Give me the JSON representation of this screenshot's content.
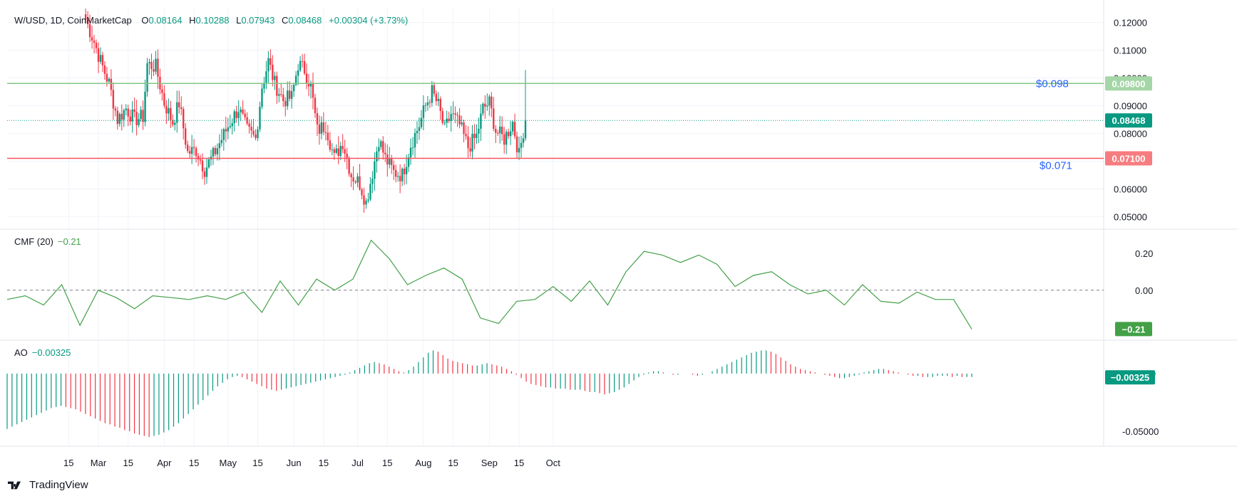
{
  "header": {
    "symbol": "W/USD, 1D, CoinMarketCap",
    "open_label": "O",
    "open": "0.08164",
    "high_label": "H",
    "high": "0.10288",
    "low_label": "L",
    "low": "0.07943",
    "close_label": "C",
    "close": "0.08468",
    "change": "+0.00304 (+3.73%)"
  },
  "indicators": {
    "cmf": {
      "label": "CMF (20)",
      "value": "−0.21"
    },
    "ao": {
      "label": "AO",
      "value": "−0.00325"
    }
  },
  "brand": {
    "name": "TradingView"
  },
  "colors": {
    "up": "#089981",
    "down": "#f23645",
    "cmf_line": "#43a047",
    "resistance": "#81c784",
    "support": "#f7525f",
    "annotation": "#2962ff"
  },
  "chart_data": {
    "type": "candlestick",
    "x_ticks": [
      "15",
      "Mar",
      "15",
      "Apr",
      "15",
      "May",
      "15",
      "Jun",
      "15",
      "Jul",
      "15",
      "Aug",
      "15",
      "Sep",
      "15",
      "Oct"
    ],
    "price_axis": {
      "ticks": [
        "0.12000",
        "0.11000",
        "0.10000",
        "0.09000",
        "0.08000",
        "0.07000",
        "0.06000",
        "0.05000"
      ],
      "range": [
        0.047,
        0.124
      ]
    },
    "resistance": {
      "value": 0.098,
      "annotation": "$0.098",
      "badge": "0.09800"
    },
    "support": {
      "value": 0.071,
      "annotation": "$0.071",
      "badge": "0.07100"
    },
    "last_price": {
      "value": 0.08468,
      "badge": "0.08468"
    },
    "close_points": [
      {
        "date": "Feb 23",
        "close": 0.121
      },
      {
        "date": "Feb 27",
        "close": 0.113
      },
      {
        "date": "Mar 2",
        "close": 0.106
      },
      {
        "date": "Mar 6",
        "close": 0.098
      },
      {
        "date": "Mar 10",
        "close": 0.085
      },
      {
        "date": "Mar 14",
        "close": 0.089
      },
      {
        "date": "Mar 18",
        "close": 0.085
      },
      {
        "date": "Mar 22",
        "close": 0.086
      },
      {
        "date": "Mar 24",
        "close": 0.105
      },
      {
        "date": "Mar 28",
        "close": 0.104
      },
      {
        "date": "Apr 1",
        "close": 0.091
      },
      {
        "date": "Apr 5",
        "close": 0.084
      },
      {
        "date": "Apr 8",
        "close": 0.091
      },
      {
        "date": "Apr 12",
        "close": 0.073
      },
      {
        "date": "Apr 16",
        "close": 0.074
      },
      {
        "date": "Apr 20",
        "close": 0.067
      },
      {
        "date": "Apr 24",
        "close": 0.072
      },
      {
        "date": "Apr 28",
        "close": 0.078
      },
      {
        "date": "May 2",
        "close": 0.084
      },
      {
        "date": "May 6",
        "close": 0.089
      },
      {
        "date": "May 10",
        "close": 0.081
      },
      {
        "date": "May 14",
        "close": 0.078
      },
      {
        "date": "May 17",
        "close": 0.097
      },
      {
        "date": "May 20",
        "close": 0.106
      },
      {
        "date": "May 23",
        "close": 0.098
      },
      {
        "date": "May 27",
        "close": 0.092
      },
      {
        "date": "May 31",
        "close": 0.093
      },
      {
        "date": "Jun 3",
        "close": 0.105
      },
      {
        "date": "Jun 6",
        "close": 0.103
      },
      {
        "date": "Jun 9",
        "close": 0.097
      },
      {
        "date": "Jun 12",
        "close": 0.081
      },
      {
        "date": "Jun 16",
        "close": 0.083
      },
      {
        "date": "Jun 20",
        "close": 0.071
      },
      {
        "date": "Jun 24",
        "close": 0.077
      },
      {
        "date": "Jun 28",
        "close": 0.065
      },
      {
        "date": "Jul 2",
        "close": 0.062
      },
      {
        "date": "Jul 5",
        "close": 0.055
      },
      {
        "date": "Jul 8",
        "close": 0.066
      },
      {
        "date": "Jul 11",
        "close": 0.078
      },
      {
        "date": "Jul 14",
        "close": 0.071
      },
      {
        "date": "Jul 18",
        "close": 0.066
      },
      {
        "date": "Jul 22",
        "close": 0.065
      },
      {
        "date": "Jul 26",
        "close": 0.076
      },
      {
        "date": "Jul 30",
        "close": 0.083
      },
      {
        "date": "Aug 2",
        "close": 0.09
      },
      {
        "date": "Aug 5",
        "close": 0.095
      },
      {
        "date": "Aug 8",
        "close": 0.09
      },
      {
        "date": "Aug 11",
        "close": 0.081
      },
      {
        "date": "Aug 14",
        "close": 0.087
      },
      {
        "date": "Aug 18",
        "close": 0.083
      },
      {
        "date": "Aug 22",
        "close": 0.075
      },
      {
        "date": "Aug 26",
        "close": 0.079
      },
      {
        "date": "Aug 29",
        "close": 0.089
      },
      {
        "date": "Sep 1",
        "close": 0.091
      },
      {
        "date": "Sep 4",
        "close": 0.081
      },
      {
        "date": "Sep 8",
        "close": 0.078
      },
      {
        "date": "Sep 12",
        "close": 0.084
      },
      {
        "date": "Sep 15",
        "close": 0.072
      },
      {
        "date": "Sep 17",
        "close": 0.081
      },
      {
        "date": "Sep 18",
        "close": 0.08468
      }
    ],
    "cmf": {
      "axis_ticks": [
        "0.20",
        "0.00"
      ],
      "range": [
        -0.27,
        0.33
      ],
      "zero_line": 0,
      "points": [
        {
          "date": "Feb 10",
          "v": -0.05
        },
        {
          "date": "Feb 18",
          "v": -0.03
        },
        {
          "date": "Feb 24",
          "v": -0.08
        },
        {
          "date": "Feb 27",
          "v": 0.03
        },
        {
          "date": "Mar 1",
          "v": -0.19
        },
        {
          "date": "Mar 6",
          "v": 0.0
        },
        {
          "date": "Mar 12",
          "v": -0.04
        },
        {
          "date": "Mar 18",
          "v": -0.1
        },
        {
          "date": "Mar 24",
          "v": -0.03
        },
        {
          "date": "Mar 31",
          "v": -0.04
        },
        {
          "date": "Apr 6",
          "v": -0.05
        },
        {
          "date": "Apr 12",
          "v": -0.03
        },
        {
          "date": "Apr 18",
          "v": -0.05
        },
        {
          "date": "Apr 24",
          "v": -0.01
        },
        {
          "date": "Apr 29",
          "v": -0.12
        },
        {
          "date": "May 4",
          "v": 0.05
        },
        {
          "date": "May 8",
          "v": -0.08
        },
        {
          "date": "May 12",
          "v": 0.06
        },
        {
          "date": "May 17",
          "v": 0.0
        },
        {
          "date": "May 24",
          "v": 0.06
        },
        {
          "date": "May 29",
          "v": 0.27
        },
        {
          "date": "Jun 1",
          "v": 0.17
        },
        {
          "date": "Jun 6",
          "v": 0.03
        },
        {
          "date": "Jun 12",
          "v": 0.08
        },
        {
          "date": "Jun 16",
          "v": 0.12
        },
        {
          "date": "Jun 22",
          "v": 0.06
        },
        {
          "date": "Jun 26",
          "v": -0.15
        },
        {
          "date": "Jun 30",
          "v": -0.18
        },
        {
          "date": "Jul 6",
          "v": -0.06
        },
        {
          "date": "Jul 12",
          "v": -0.05
        },
        {
          "date": "Jul 16",
          "v": 0.02
        },
        {
          "date": "Jul 22",
          "v": -0.06
        },
        {
          "date": "Jul 28",
          "v": 0.05
        },
        {
          "date": "Aug 1",
          "v": -0.08
        },
        {
          "date": "Aug 6",
          "v": 0.1
        },
        {
          "date": "Aug 10",
          "v": 0.21
        },
        {
          "date": "Aug 16",
          "v": 0.19
        },
        {
          "date": "Aug 22",
          "v": 0.15
        },
        {
          "date": "Aug 29",
          "v": 0.19
        },
        {
          "date": "Sep 3",
          "v": 0.14
        },
        {
          "date": "Sep 5",
          "v": 0.02
        },
        {
          "date": "Sep 9",
          "v": 0.08
        },
        {
          "date": "Sep 15",
          "v": 0.1
        },
        {
          "date": "Sep 21",
          "v": 0.03
        },
        {
          "date": "Sep 26",
          "v": -0.02
        },
        {
          "date": "Oct 1",
          "v": 0.0
        },
        {
          "date": "Oct 6",
          "v": -0.08
        },
        {
          "date": "Oct 10",
          "v": 0.03
        },
        {
          "date": "Oct 15",
          "v": -0.06
        },
        {
          "date": "Oct 20",
          "v": -0.07
        },
        {
          "date": "Oct 24",
          "v": -0.01
        },
        {
          "date": "Oct 28",
          "v": -0.05
        },
        {
          "date": "Nov 1",
          "v": -0.05
        },
        {
          "date": "Nov 3",
          "v": -0.21
        }
      ]
    },
    "ao": {
      "axis_ticks": [
        "0.00000",
        "-0.05000"
      ],
      "range": [
        -0.058,
        0.024
      ],
      "zero_line": 0,
      "bars": [
        -0.048,
        -0.046,
        -0.044,
        -0.042,
        -0.04,
        -0.038,
        -0.036,
        -0.034,
        -0.032,
        -0.03,
        -0.029,
        -0.028,
        -0.029,
        -0.03,
        -0.031,
        -0.033,
        -0.035,
        -0.037,
        -0.039,
        -0.041,
        -0.043,
        -0.044,
        -0.046,
        -0.047,
        -0.049,
        -0.05,
        -0.052,
        -0.053,
        -0.054,
        -0.055,
        -0.054,
        -0.053,
        -0.051,
        -0.049,
        -0.046,
        -0.043,
        -0.039,
        -0.035,
        -0.031,
        -0.027,
        -0.023,
        -0.019,
        -0.015,
        -0.011,
        -0.008,
        -0.005,
        -0.003,
        -0.002,
        -0.003,
        -0.005,
        -0.007,
        -0.009,
        -0.011,
        -0.013,
        -0.014,
        -0.015,
        -0.014,
        -0.013,
        -0.012,
        -0.011,
        -0.01,
        -0.009,
        -0.008,
        -0.007,
        -0.006,
        -0.005,
        -0.004,
        -0.003,
        -0.002,
        -0.001,
        0.001,
        0.003,
        0.005,
        0.007,
        0.009,
        0.01,
        0.009,
        0.008,
        0.006,
        0.004,
        0.002,
        0.001,
        0.003,
        0.006,
        0.01,
        0.014,
        0.018,
        0.02,
        0.019,
        0.016,
        0.013,
        0.011,
        0.01,
        0.009,
        0.008,
        0.007,
        0.007,
        0.008,
        0.009,
        0.008,
        0.007,
        0.006,
        0.004,
        0.002,
        -0.001,
        -0.004,
        -0.007,
        -0.009,
        -0.01,
        -0.011,
        -0.012,
        -0.012,
        -0.013,
        -0.013,
        -0.013,
        -0.014,
        -0.014,
        -0.014,
        -0.015,
        -0.016,
        -0.016,
        -0.017,
        -0.018,
        -0.017,
        -0.016,
        -0.014,
        -0.012,
        -0.009,
        -0.006,
        -0.003,
        -0.001,
        0.001,
        0.002,
        0.002,
        0.001,
        0.0,
        -0.001,
        -0.001,
        0.0,
        0.0,
        -0.001,
        -0.002,
        -0.001,
        0.0,
        0.002,
        0.004,
        0.006,
        0.008,
        0.01,
        0.012,
        0.014,
        0.016,
        0.018,
        0.019,
        0.02,
        0.02,
        0.019,
        0.017,
        0.014,
        0.011,
        0.008,
        0.006,
        0.004,
        0.003,
        0.002,
        0.001,
        0.0,
        -0.001,
        -0.002,
        -0.003,
        -0.004,
        -0.004,
        -0.003,
        -0.002,
        -0.001,
        0.001,
        0.002,
        0.003,
        0.004,
        0.004,
        0.003,
        0.002,
        0.001,
        0.0,
        -0.001,
        -0.002,
        -0.002,
        -0.003,
        -0.003,
        -0.003,
        -0.002,
        -0.002,
        -0.002,
        -0.003,
        -0.002,
        -0.003,
        -0.003,
        -0.003
      ]
    }
  }
}
